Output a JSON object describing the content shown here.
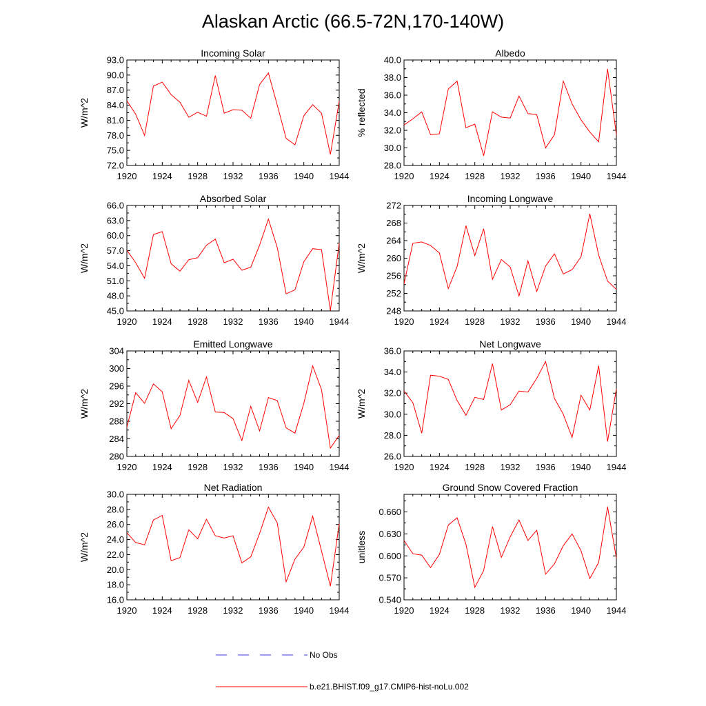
{
  "figure": {
    "title": "Alaskan Arctic (66.5-72N,170-140W)"
  },
  "legend": [
    {
      "label": "No Obs",
      "color": "#3b3bd8",
      "dashed": true
    },
    {
      "label": "b.e21.BHIST.f09_g17.CMIP6-hist-noLu.002",
      "color": "#ff0000",
      "dashed": false
    }
  ],
  "chart_data": [
    {
      "type": "line",
      "title": "Incoming Solar",
      "ylabel": "W/m^2",
      "xlim": [
        1920,
        1944
      ],
      "ylim": [
        72.0,
        93.0
      ],
      "xticks": [
        "1920",
        "1924",
        "1928",
        "1932",
        "1936",
        "1940",
        "1944"
      ],
      "yticks": [
        "72.0",
        "75.0",
        "78.0",
        "81.0",
        "84.0",
        "87.0",
        "90.0",
        "93.0"
      ],
      "x": [
        1920,
        1921,
        1922,
        1923,
        1924,
        1925,
        1926,
        1927,
        1928,
        1929,
        1930,
        1931,
        1932,
        1933,
        1934,
        1935,
        1936,
        1937,
        1938,
        1939,
        1940,
        1941,
        1942,
        1943,
        1944
      ],
      "series": [
        {
          "color": "#ff0000",
          "values": [
            84.9,
            82.2,
            78.0,
            87.8,
            88.6,
            86.1,
            84.6,
            81.6,
            82.6,
            81.8,
            89.9,
            82.4,
            83.1,
            83.0,
            81.4,
            88.1,
            90.4,
            84.0,
            77.4,
            76.1,
            81.9,
            84.1,
            82.4,
            74.2,
            84.8
          ]
        }
      ]
    },
    {
      "type": "line",
      "title": "Albedo",
      "ylabel": "% reflected",
      "xlim": [
        1920,
        1944
      ],
      "ylim": [
        28.0,
        40.0
      ],
      "xticks": [
        "1920",
        "1924",
        "1928",
        "1932",
        "1936",
        "1940",
        "1944"
      ],
      "yticks": [
        "28.0",
        "30.0",
        "32.0",
        "34.0",
        "36.0",
        "38.0",
        "40.0"
      ],
      "x": [
        1920,
        1921,
        1922,
        1923,
        1924,
        1925,
        1926,
        1927,
        1928,
        1929,
        1930,
        1931,
        1932,
        1933,
        1934,
        1935,
        1936,
        1937,
        1938,
        1939,
        1940,
        1941,
        1942,
        1943,
        1944
      ],
      "series": [
        {
          "color": "#ff0000",
          "values": [
            32.6,
            33.3,
            34.1,
            31.5,
            31.6,
            36.7,
            37.6,
            32.3,
            32.7,
            29.1,
            34.1,
            33.5,
            33.4,
            35.9,
            33.9,
            33.8,
            30.0,
            31.5,
            37.6,
            35.0,
            33.2,
            31.8,
            30.7,
            39.0,
            31.5
          ]
        }
      ]
    },
    {
      "type": "line",
      "title": "Absorbed Solar",
      "ylabel": "W/m^2",
      "xlim": [
        1920,
        1944
      ],
      "ylim": [
        45.0,
        66.0
      ],
      "xticks": [
        "1920",
        "1924",
        "1928",
        "1932",
        "1936",
        "1940",
        "1944"
      ],
      "yticks": [
        "45.0",
        "48.0",
        "51.0",
        "54.0",
        "57.0",
        "60.0",
        "63.0",
        "66.0"
      ],
      "x": [
        1920,
        1921,
        1922,
        1923,
        1924,
        1925,
        1926,
        1927,
        1928,
        1929,
        1930,
        1931,
        1932,
        1933,
        1934,
        1935,
        1936,
        1937,
        1938,
        1939,
        1940,
        1941,
        1942,
        1943,
        1944
      ],
      "series": [
        {
          "color": "#ff0000",
          "values": [
            57.1,
            54.6,
            51.5,
            60.2,
            60.8,
            54.4,
            52.9,
            55.2,
            55.6,
            58.1,
            59.3,
            54.6,
            55.3,
            53.1,
            53.7,
            58.1,
            63.3,
            57.6,
            48.4,
            49.2,
            54.8,
            57.4,
            57.2,
            45.1,
            58.5
          ]
        }
      ]
    },
    {
      "type": "line",
      "title": "Incoming Longwave",
      "ylabel": "W/m^2",
      "xlim": [
        1920,
        1944
      ],
      "ylim": [
        248,
        272
      ],
      "xticks": [
        "1920",
        "1924",
        "1928",
        "1932",
        "1936",
        "1940",
        "1944"
      ],
      "yticks": [
        "248",
        "252",
        "256",
        "260",
        "264",
        "268",
        "272"
      ],
      "x": [
        1920,
        1921,
        1922,
        1923,
        1924,
        1925,
        1926,
        1927,
        1928,
        1929,
        1930,
        1931,
        1932,
        1933,
        1934,
        1935,
        1936,
        1937,
        1938,
        1939,
        1940,
        1941,
        1942,
        1943,
        1944
      ],
      "series": [
        {
          "color": "#ff0000",
          "values": [
            254.2,
            263.4,
            263.7,
            262.9,
            261.2,
            253.1,
            258.1,
            267.4,
            260.6,
            266.7,
            255.2,
            259.7,
            258.0,
            251.4,
            259.4,
            252.4,
            258.2,
            261.0,
            256.4,
            257.4,
            260.3,
            270.1,
            260.7,
            254.8,
            252.9
          ]
        }
      ]
    },
    {
      "type": "line",
      "title": "Emitted Longwave",
      "ylabel": "W/m^2",
      "xlim": [
        1920,
        1944
      ],
      "ylim": [
        280,
        304
      ],
      "xticks": [
        "1920",
        "1924",
        "1928",
        "1932",
        "1936",
        "1940",
        "1944"
      ],
      "yticks": [
        "280",
        "284",
        "288",
        "292",
        "296",
        "300",
        "304"
      ],
      "x": [
        1920,
        1921,
        1922,
        1923,
        1924,
        1925,
        1926,
        1927,
        1928,
        1929,
        1930,
        1931,
        1932,
        1933,
        1934,
        1935,
        1936,
        1937,
        1938,
        1939,
        1940,
        1941,
        1942,
        1943,
        1944
      ],
      "series": [
        {
          "color": "#ff0000",
          "values": [
            286.6,
            294.5,
            292.1,
            296.5,
            294.7,
            286.3,
            289.3,
            297.3,
            292.3,
            298.1,
            290.1,
            290.0,
            288.6,
            283.6,
            291.4,
            285.8,
            293.4,
            292.7,
            286.5,
            285.3,
            292.1,
            300.6,
            295.2,
            281.9,
            284.8
          ]
        }
      ]
    },
    {
      "type": "line",
      "title": "Net Longwave",
      "ylabel": "W/m^2",
      "xlim": [
        1920,
        1944
      ],
      "ylim": [
        26.0,
        36.0
      ],
      "xticks": [
        "1920",
        "1924",
        "1928",
        "1932",
        "1936",
        "1940",
        "1944"
      ],
      "yticks": [
        "26.0",
        "28.0",
        "30.0",
        "32.0",
        "34.0",
        "36.0"
      ],
      "x": [
        1920,
        1921,
        1922,
        1923,
        1924,
        1925,
        1926,
        1927,
        1928,
        1929,
        1930,
        1931,
        1932,
        1933,
        1934,
        1935,
        1936,
        1937,
        1938,
        1939,
        1940,
        1941,
        1942,
        1943,
        1944
      ],
      "series": [
        {
          "color": "#ff0000",
          "values": [
            32.2,
            31.1,
            28.2,
            33.7,
            33.6,
            33.3,
            31.3,
            29.9,
            31.6,
            31.4,
            34.8,
            30.4,
            30.9,
            32.2,
            32.1,
            33.4,
            35.0,
            31.5,
            30.0,
            27.8,
            31.8,
            30.4,
            34.6,
            27.4,
            32.4
          ]
        }
      ]
    },
    {
      "type": "line",
      "title": "Net Radiation",
      "ylabel": "W/m^2",
      "xlim": [
        1920,
        1944
      ],
      "ylim": [
        16.0,
        30.0
      ],
      "xticks": [
        "1920",
        "1924",
        "1928",
        "1932",
        "1936",
        "1940",
        "1944"
      ],
      "yticks": [
        "16.0",
        "18.0",
        "20.0",
        "22.0",
        "24.0",
        "26.0",
        "28.0",
        "30.0"
      ],
      "x": [
        1920,
        1921,
        1922,
        1923,
        1924,
        1925,
        1926,
        1927,
        1928,
        1929,
        1930,
        1931,
        1932,
        1933,
        1934,
        1935,
        1936,
        1937,
        1938,
        1939,
        1940,
        1941,
        1942,
        1943,
        1944
      ],
      "series": [
        {
          "color": "#ff0000",
          "values": [
            24.9,
            23.6,
            23.3,
            26.6,
            27.2,
            21.2,
            21.6,
            25.3,
            24.1,
            26.7,
            24.5,
            24.2,
            24.5,
            20.9,
            21.7,
            24.8,
            28.3,
            26.2,
            18.4,
            21.4,
            23.0,
            27.1,
            22.5,
            17.8,
            26.1
          ]
        }
      ]
    },
    {
      "type": "line",
      "title": "Ground Snow Covered Fraction",
      "ylabel": "unitless",
      "xlim": [
        1920,
        1944
      ],
      "ylim": [
        0.54,
        0.684
      ],
      "xticks": [
        "1920",
        "1924",
        "1928",
        "1932",
        "1936",
        "1940",
        "1944"
      ],
      "yticks": [
        "0.540",
        "0.570",
        "0.600",
        "0.630",
        "0.660"
      ],
      "x": [
        1920,
        1921,
        1922,
        1923,
        1924,
        1925,
        1926,
        1927,
        1928,
        1929,
        1930,
        1931,
        1932,
        1933,
        1934,
        1935,
        1936,
        1937,
        1938,
        1939,
        1940,
        1941,
        1942,
        1943,
        1944
      ],
      "series": [
        {
          "color": "#ff0000",
          "values": [
            0.621,
            0.603,
            0.601,
            0.584,
            0.602,
            0.642,
            0.652,
            0.616,
            0.557,
            0.58,
            0.64,
            0.598,
            0.626,
            0.649,
            0.621,
            0.635,
            0.575,
            0.589,
            0.614,
            0.63,
            0.607,
            0.569,
            0.591,
            0.667,
            0.597
          ]
        }
      ]
    }
  ]
}
